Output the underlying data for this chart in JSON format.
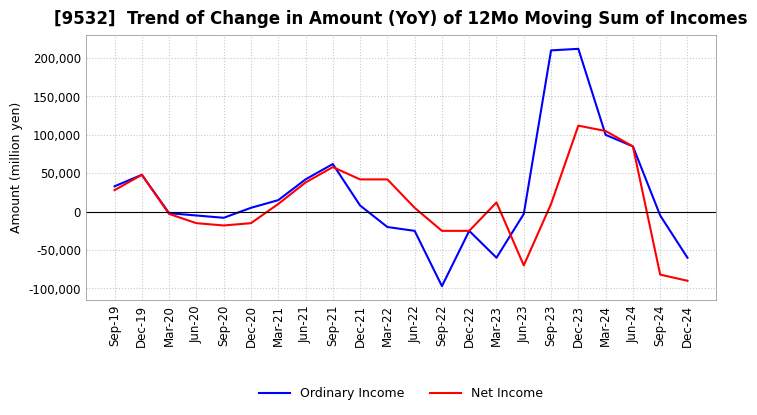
{
  "title": "[9532]  Trend of Change in Amount (YoY) of 12Mo Moving Sum of Incomes",
  "ylabel": "Amount (million yen)",
  "x_labels": [
    "Sep-19",
    "Dec-19",
    "Mar-20",
    "Jun-20",
    "Sep-20",
    "Dec-20",
    "Mar-21",
    "Jun-21",
    "Sep-21",
    "Dec-21",
    "Mar-22",
    "Jun-22",
    "Sep-22",
    "Dec-22",
    "Mar-23",
    "Jun-23",
    "Sep-23",
    "Dec-23",
    "Mar-24",
    "Jun-24",
    "Sep-24",
    "Dec-24"
  ],
  "ordinary_income": [
    33000,
    48000,
    -2000,
    -5000,
    -8000,
    5000,
    15000,
    42000,
    62000,
    8000,
    -20000,
    -25000,
    -97000,
    -25000,
    -60000,
    -3000,
    210000,
    212000,
    100000,
    85000,
    -5000,
    -60000
  ],
  "net_income": [
    28000,
    48000,
    -3000,
    -15000,
    -18000,
    -15000,
    10000,
    38000,
    58000,
    42000,
    42000,
    5000,
    -25000,
    -25000,
    12000,
    -70000,
    10000,
    112000,
    105000,
    85000,
    -82000,
    -90000
  ],
  "ordinary_color": "#0000FF",
  "net_color": "#FF0000",
  "ylim": [
    -115000,
    230000
  ],
  "yticks": [
    -100000,
    -50000,
    0,
    50000,
    100000,
    150000,
    200000
  ],
  "background_color": "#ffffff",
  "title_fontsize": 12,
  "label_fontsize": 9,
  "tick_fontsize": 8.5,
  "grid_color": "#c8c8c8",
  "grid_linestyle": "dotted"
}
